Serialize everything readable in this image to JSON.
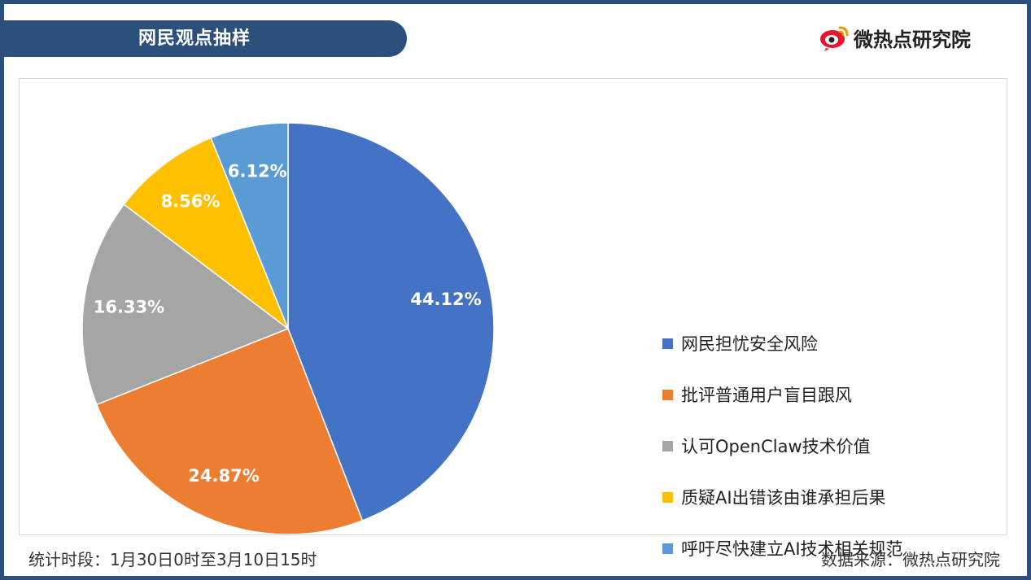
{
  "header": {
    "title": "网民观点抽样",
    "logo_text": "微热点研究院",
    "logo_icon": "weibo-eye-icon"
  },
  "footer": {
    "period": "统计时段：1月30日0时至3月10日15时",
    "source": "数据来源：微热点研究院"
  },
  "chart_data": {
    "type": "pie",
    "title": "",
    "categories": [
      "网民担忧安全风险",
      "批评普通用户盲目跟风",
      "认可OpenClaw技术价值",
      "质疑AI出错该由谁承担后果",
      "呼吁尽快建立AI技术相关规范"
    ],
    "values": [
      44.12,
      24.87,
      16.33,
      8.56,
      6.12
    ],
    "labels": [
      "44.12%",
      "24.87%",
      "16.33%",
      "8.56%",
      "6.12%"
    ],
    "colors": [
      "#4472c4",
      "#ed7d31",
      "#a5a5a5",
      "#ffc000",
      "#5b9bd5"
    ],
    "start_angle": "12 o'clock",
    "direction": "clockwise",
    "legend_position": "right"
  }
}
